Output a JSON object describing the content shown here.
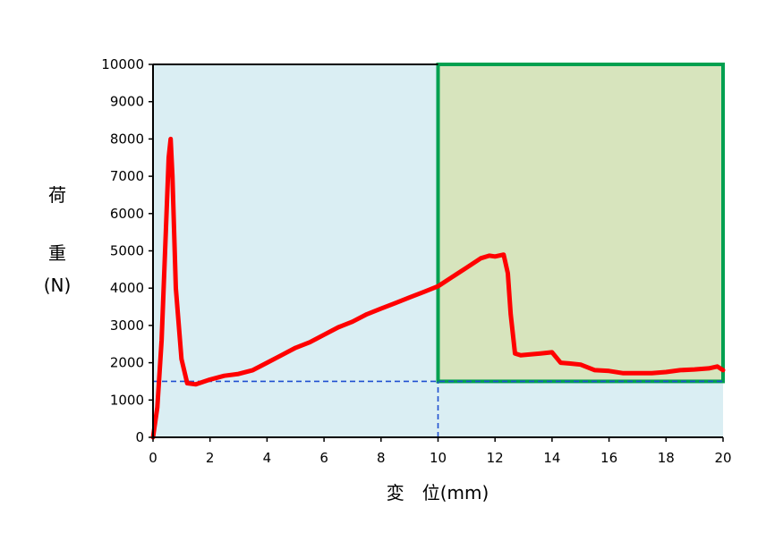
{
  "chart_data": {
    "type": "line",
    "title": "",
    "xlabel": "変　位(mm)",
    "ylabel_lines": [
      "荷",
      "重",
      "(N)"
    ],
    "xlim": [
      0,
      20
    ],
    "ylim": [
      0,
      10000
    ],
    "x_ticks": [
      0,
      2,
      4,
      6,
      8,
      10,
      12,
      14,
      16,
      18,
      20
    ],
    "y_ticks": [
      0,
      1000,
      2000,
      3000,
      4000,
      5000,
      6000,
      7000,
      8000,
      9000,
      10000
    ],
    "grid": false,
    "legend": "none",
    "regions": [
      {
        "x": [
          0,
          20
        ],
        "y": [
          0,
          10000
        ],
        "fill": "#daeef3"
      },
      {
        "x": [
          10,
          20
        ],
        "y": [
          1500,
          10000
        ],
        "fill": "#d7e4bd",
        "border": "#00a050"
      }
    ],
    "reference_lines": [
      {
        "orientation": "horizontal",
        "value": 1500,
        "x_range": [
          0,
          20
        ],
        "style": "dashed",
        "color": "#1f4fd0"
      },
      {
        "orientation": "vertical",
        "value": 10,
        "y_range": [
          0,
          1500
        ],
        "style": "dashed",
        "color": "#1f4fd0"
      }
    ],
    "series": [
      {
        "color": "#ff0000",
        "x": [
          0,
          0.15,
          0.3,
          0.45,
          0.55,
          0.62,
          0.68,
          0.8,
          1.0,
          1.2,
          1.5,
          2.0,
          2.5,
          3.0,
          3.5,
          4.0,
          4.5,
          5.0,
          5.5,
          6.0,
          6.5,
          7.0,
          7.5,
          8.0,
          8.5,
          9.0,
          9.5,
          10.0,
          10.5,
          11.0,
          11.5,
          11.8,
          12.0,
          12.3,
          12.45,
          12.55,
          12.7,
          12.9,
          13.2,
          13.6,
          14.0,
          14.3,
          14.6,
          15.0,
          15.5,
          16.0,
          16.5,
          17.0,
          17.5,
          18.0,
          18.5,
          19.0,
          19.5,
          19.8,
          20.0
        ],
        "y": [
          0,
          800,
          2600,
          5500,
          7500,
          8000,
          7000,
          4000,
          2100,
          1450,
          1420,
          1550,
          1650,
          1700,
          1800,
          2000,
          2200,
          2400,
          2550,
          2750,
          2950,
          3100,
          3300,
          3450,
          3600,
          3750,
          3900,
          4050,
          4300,
          4550,
          4800,
          4870,
          4850,
          4900,
          4400,
          3300,
          2250,
          2200,
          2220,
          2250,
          2280,
          2000,
          1980,
          1950,
          1800,
          1780,
          1720,
          1720,
          1720,
          1750,
          1800,
          1820,
          1850,
          1900,
          1800
        ]
      }
    ]
  }
}
